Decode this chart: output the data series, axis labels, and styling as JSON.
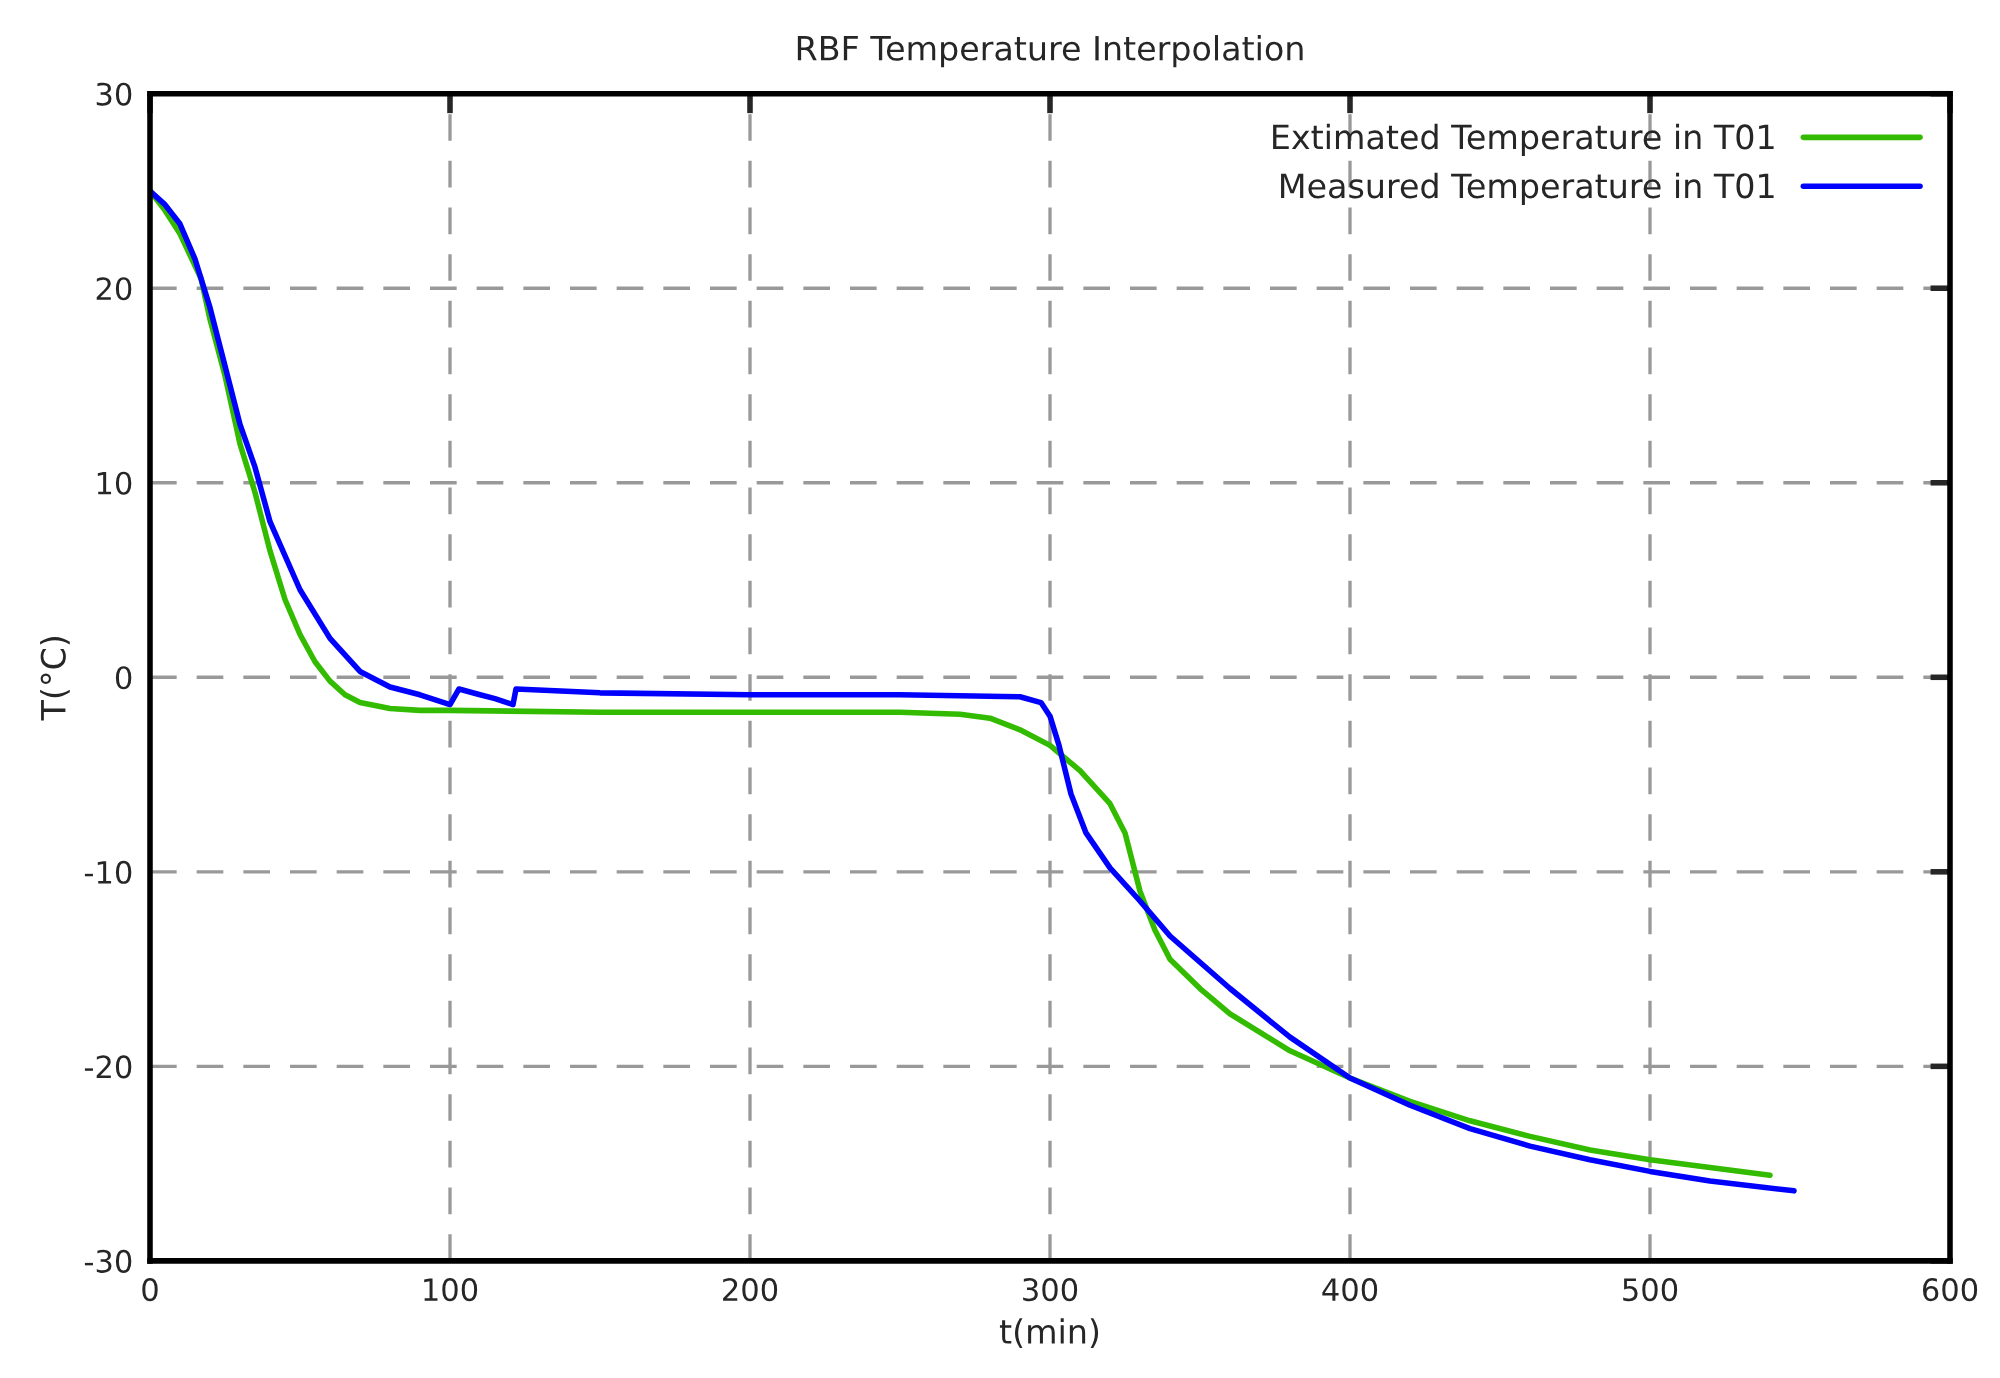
{
  "chart_data": {
    "type": "line",
    "title": "RBF Temperature Interpolation",
    "xlabel": "t(min)",
    "ylabel": "T(°C)",
    "xlim": [
      0,
      600
    ],
    "xticks": [
      0,
      100,
      200,
      300,
      400,
      500,
      600
    ],
    "ylim": [
      -30,
      30
    ],
    "yticks": [
      -30,
      -20,
      -10,
      0,
      10,
      20,
      30
    ],
    "grid": true,
    "legend": "top right",
    "line_style": "solid",
    "marker": "none",
    "series": [
      {
        "name": "Extimated Temperature in T01",
        "color": "#33bb00",
        "x": [
          0,
          5,
          10,
          17,
          20,
          25,
          30,
          35,
          40,
          45,
          50,
          55,
          60,
          65,
          70,
          80,
          90,
          100,
          150,
          200,
          250,
          270,
          280,
          290,
          300,
          310,
          320,
          325,
          330,
          335,
          340,
          350,
          360,
          380,
          400,
          420,
          440,
          460,
          480,
          500,
          520,
          540
        ],
        "values": [
          25,
          24,
          22.8,
          20.5,
          18.4,
          15.5,
          12,
          9.5,
          6.5,
          4,
          2.2,
          0.8,
          -0.2,
          -0.9,
          -1.3,
          -1.6,
          -1.7,
          -1.7,
          -1.8,
          -1.8,
          -1.8,
          -1.9,
          -2.1,
          -2.7,
          -3.5,
          -4.8,
          -6.5,
          -8,
          -11,
          -13,
          -14.5,
          -16,
          -17.3,
          -19.2,
          -20.6,
          -21.8,
          -22.8,
          -23.6,
          -24.3,
          -24.8,
          -25.2,
          -25.6
        ]
      },
      {
        "name": "Measured Temperature in T01",
        "color": "#0000ff",
        "x": [
          0,
          5,
          10,
          15,
          20,
          25,
          30,
          35,
          40,
          50,
          60,
          70,
          80,
          90,
          100,
          103,
          110,
          115,
          121,
          122,
          150,
          200,
          250,
          290,
          297,
          300,
          303,
          307,
          312,
          320,
          330,
          340,
          360,
          380,
          400,
          420,
          440,
          460,
          480,
          500,
          520,
          548
        ],
        "values": [
          25,
          24.3,
          23.3,
          21.5,
          19,
          16,
          13,
          10.8,
          8,
          4.5,
          2,
          0.3,
          -0.5,
          -0.9,
          -1.4,
          -0.6,
          -0.9,
          -1.1,
          -1.4,
          -0.6,
          -0.8,
          -0.9,
          -0.9,
          -1.0,
          -1.3,
          -2,
          -3.5,
          -6,
          -8,
          -9.8,
          -11.5,
          -13.3,
          -16,
          -18.5,
          -20.6,
          -22,
          -23.2,
          -24.1,
          -24.8,
          -25.4,
          -25.9,
          -26.4
        ]
      }
    ]
  }
}
